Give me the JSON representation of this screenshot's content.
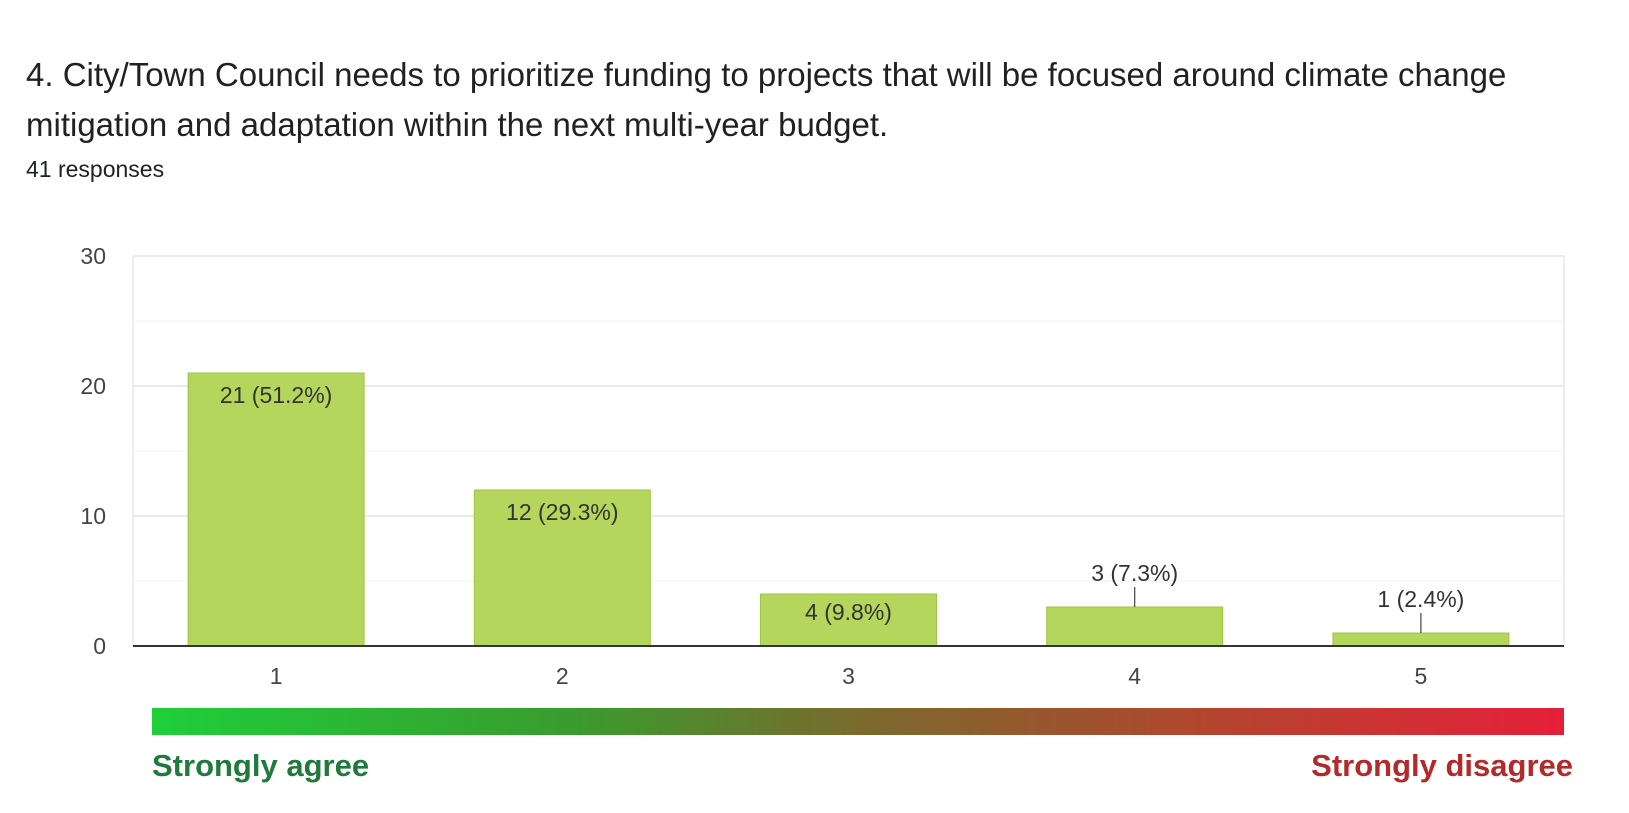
{
  "question": {
    "title": "4. City/Town Council needs to prioritize funding to projects that will be focused around climate change mitigation and adaptation within the next multi-year budget.",
    "responses": "41 responses"
  },
  "colors": {
    "bar": "#b5d65c",
    "bar_border": "#9fc444",
    "grid": "#e8e8e8",
    "axis": "#333333",
    "agree": "#1f7a3c",
    "disagree": "#b32a2a"
  },
  "chart_data": {
    "type": "bar",
    "categories": [
      "1",
      "2",
      "3",
      "4",
      "5"
    ],
    "values": [
      21,
      12,
      4,
      3,
      1
    ],
    "labels": [
      "21 (51.2%)",
      "12 (29.3%)",
      "4 (9.8%)",
      "3 (7.3%)",
      "1 (2.4%)"
    ],
    "yticks": [
      "0",
      "10",
      "20",
      "30"
    ],
    "ylim": [
      0,
      30
    ],
    "title": "",
    "xlabel": "",
    "ylabel": ""
  },
  "scale": {
    "left_label": "Strongly agree",
    "right_label": "Strongly disagree"
  }
}
